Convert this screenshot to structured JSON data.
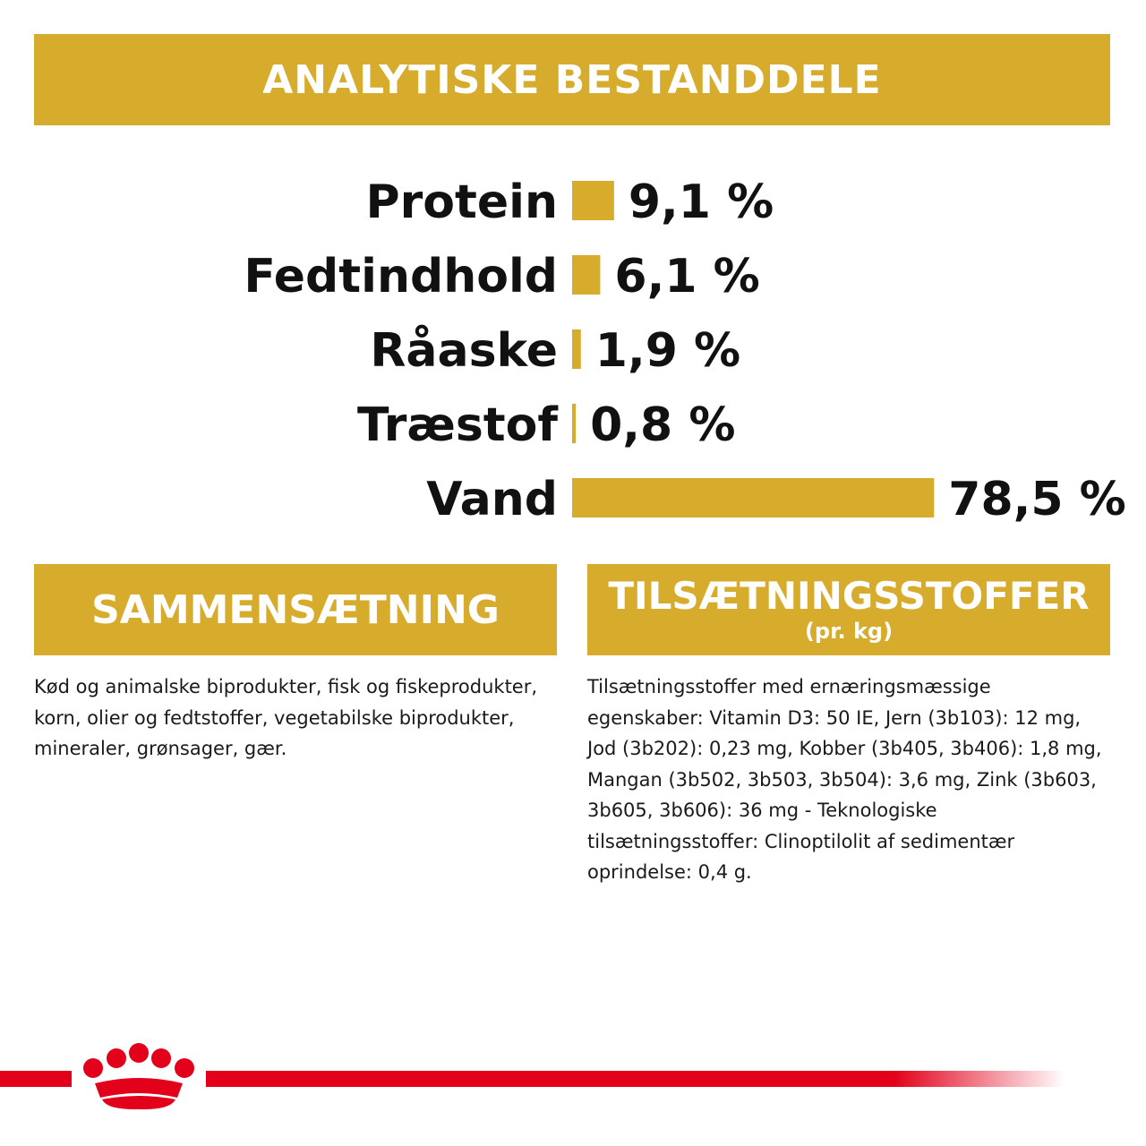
{
  "header": {
    "title": "ANALYTISKE BESTANDDELE"
  },
  "chart_data": {
    "type": "bar",
    "orientation": "horizontal",
    "categories": [
      "Protein",
      "Fedtindhold",
      "Råaske",
      "Træstof",
      "Vand"
    ],
    "values": [
      9.1,
      6.1,
      1.9,
      0.8,
      78.5
    ],
    "value_labels": [
      "9,1 %",
      "6,1 %",
      "1,9 %",
      "0,8 %",
      "78,5 %"
    ],
    "bar_color": "#d7ab2b",
    "grid": false,
    "legend": "none"
  },
  "composition": {
    "title": "SAMMENSÆTNING",
    "text": "Kød og animalske biprodukter, fisk og fiskeprodukter, korn, olier og fedtstoffer, vegetabilske biprodukter, mineraler, grønsager, gær."
  },
  "additives": {
    "title": "TILSÆTNINGSSTOFFER",
    "subtitle": "(pr. kg)",
    "text": "Tilsætningsstoffer med ernæringsmæssige egenskaber: Vitamin D3: 50 IE, Jern (3b103): 12 mg, Jod (3b202): 0,23 mg, Kobber (3b405, 3b406): 1,8 mg, Mangan (3b502, 3b503, 3b504): 3,6 mg, Zink (3b603, 3b605, 3b606): 36 mg - Teknologiske tilsætningsstoffer: Clinoptilolit af sedimentær oprindelse: 0,4 g."
  },
  "brand": {
    "logo": "crown-logo",
    "accent_color": "#e2001a"
  }
}
